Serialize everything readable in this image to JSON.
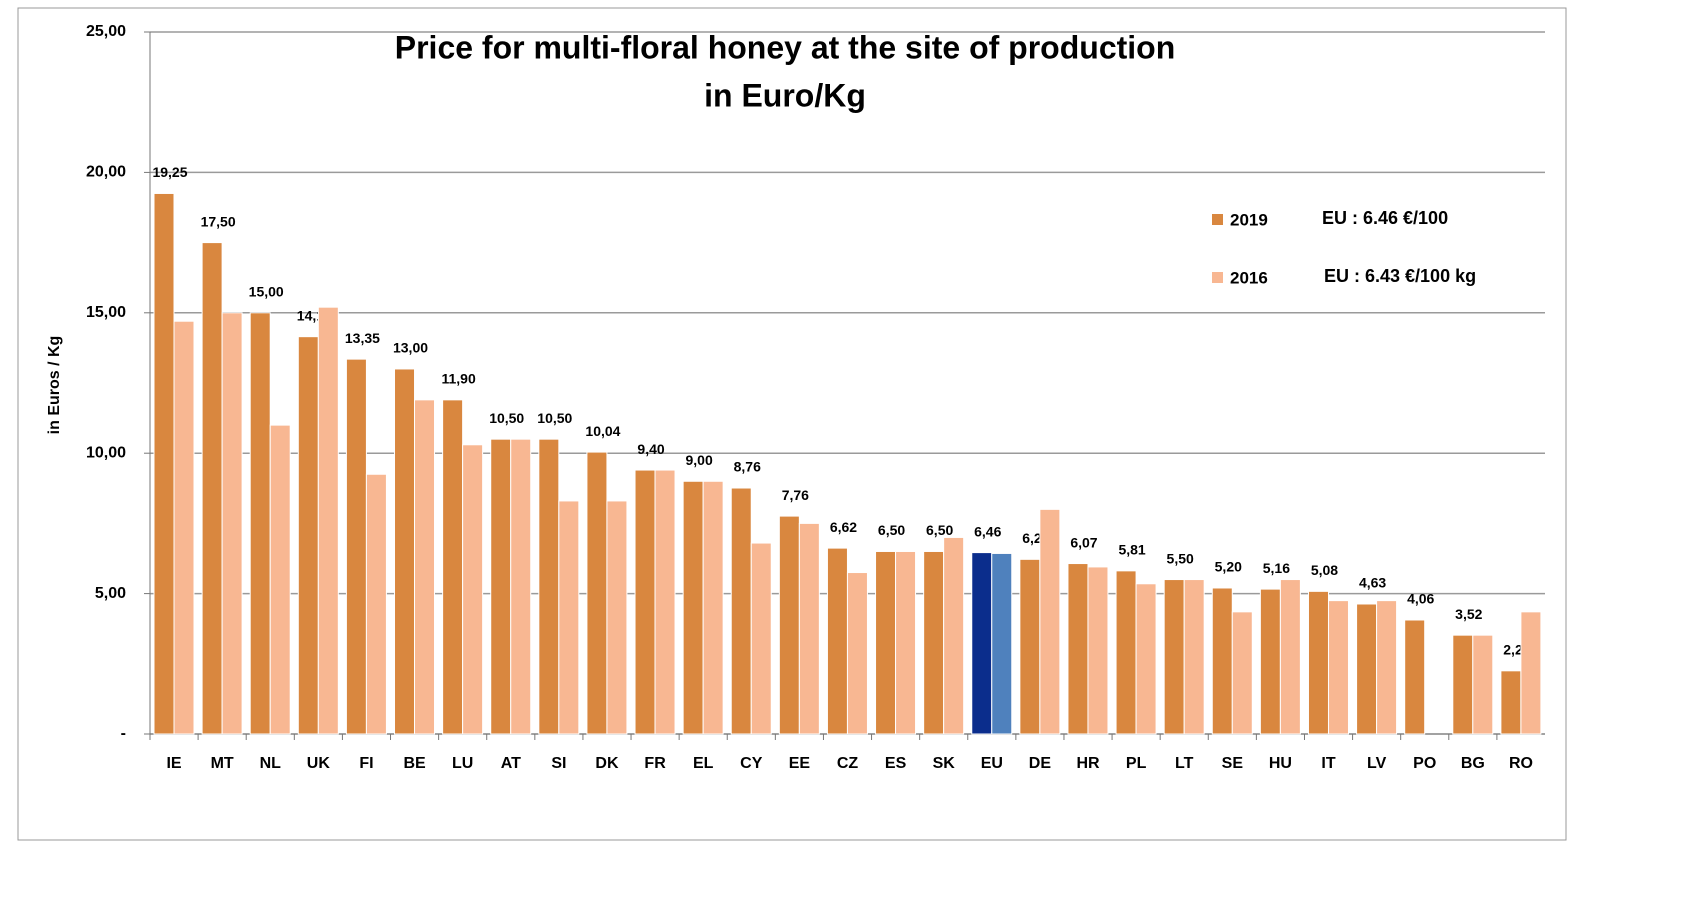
{
  "chart_data": {
    "type": "bar",
    "title": "Price for multi-floral honey at the site of production",
    "subtitle": "in Euro/Kg",
    "y_label": "in Euros / Kg",
    "categories": [
      "IE",
      "MT",
      "NL",
      "UK",
      "FI",
      "BE",
      "LU",
      "AT",
      "SI",
      "DK",
      "FR",
      "EL",
      "CY",
      "EE",
      "CZ",
      "ES",
      "SK",
      "EU",
      "DE",
      "HR",
      "PL",
      "LT",
      "SE",
      "HU",
      "IT",
      "LV",
      "PO",
      "BG",
      "RO"
    ],
    "series": [
      {
        "name": "2019",
        "color": "#d9873f",
        "values": [
          19.25,
          17.5,
          15,
          14.15,
          13.35,
          13,
          11.9,
          10.5,
          10.5,
          10.04,
          9.4,
          9,
          8.76,
          7.76,
          6.62,
          6.5,
          6.5,
          6.46,
          6.22,
          6.07,
          5.81,
          5.5,
          5.2,
          5.16,
          5.08,
          4.63,
          4.06,
          3.52,
          2.25
        ],
        "value_labels": [
          "19,25",
          "17,50",
          "15,00",
          "14,15",
          "13,35",
          "13,00",
          "11,90",
          "10,50",
          "10,50",
          "10,04",
          "9,40",
          "9,00",
          "8,76",
          "7,76",
          "6,62",
          "6,50",
          "6,50",
          "6,46",
          "6,22",
          "6,07",
          "5,81",
          "5,50",
          "5,20",
          "5,16",
          "5,08",
          "4,63",
          "4,06",
          "3,52",
          "2,25"
        ]
      },
      {
        "name": "2016",
        "color": "#f8b792",
        "values": [
          14.7,
          15.0,
          11.0,
          15.2,
          9.25,
          11.9,
          10.3,
          10.5,
          8.3,
          8.3,
          9.4,
          9.0,
          6.8,
          7.5,
          5.75,
          6.5,
          7.0,
          6.43,
          8.0,
          5.95,
          5.35,
          5.5,
          4.35,
          5.5,
          4.75,
          4.75,
          null,
          3.52,
          4.35
        ]
      }
    ],
    "highlight": {
      "category": "EU",
      "colors": [
        "#0b2d8c",
        "#4f81bd"
      ]
    },
    "annotations": [
      "EU : 6.46 €/100",
      "EU : 6.43 €/100 kg"
    ],
    "ylim": [
      0,
      25
    ],
    "yticks": [
      {
        "value": 0,
        "label": "-"
      },
      {
        "value": 5,
        "label": "5,00"
      },
      {
        "value": 10,
        "label": "10,00"
      },
      {
        "value": 15,
        "label": "15,00"
      },
      {
        "value": 20,
        "label": "20,00"
      },
      {
        "value": 25,
        "label": "25,00"
      }
    ],
    "grid": true
  }
}
